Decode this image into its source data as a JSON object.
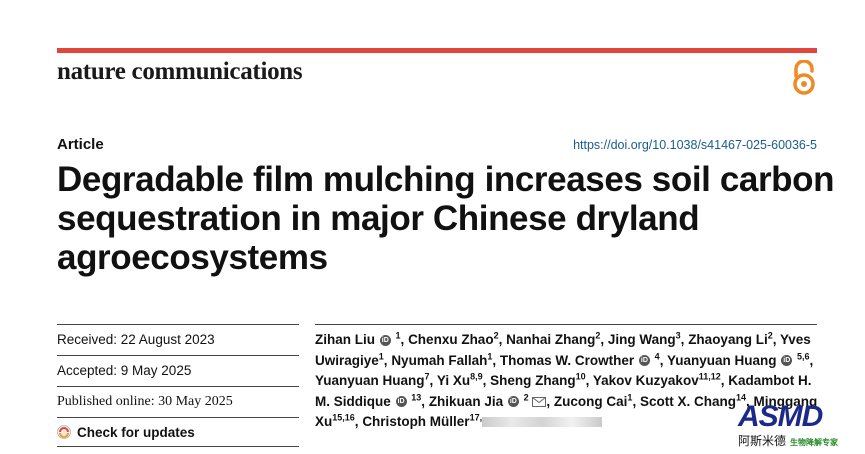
{
  "header": {
    "journal_name": "nature communications",
    "open_access_icon": "open-access-lock-icon"
  },
  "article": {
    "type": "Article",
    "doi": "https://doi.org/10.1038/s41467-025-60036-5",
    "title": "Degradable film mulching increases soil carbon sequestration in major Chinese dryland agroecosystems"
  },
  "dates": {
    "received": "Received: 22 August 2023",
    "accepted": "Accepted: 9 May 2025",
    "published": "Published online: 30 May 2025",
    "check_updates": "Check for updates"
  },
  "authors": [
    {
      "name": "Zihan Liu",
      "orcid": true,
      "sup": "1"
    },
    {
      "name": "Chenxu Zhao",
      "orcid": false,
      "sup": "2"
    },
    {
      "name": "Nanhai Zhang",
      "orcid": false,
      "sup": "2"
    },
    {
      "name": "Jing Wang",
      "orcid": false,
      "sup": "3"
    },
    {
      "name": "Zhaoyang Li",
      "orcid": false,
      "sup": "2"
    },
    {
      "name": "Yves Uwiragiye",
      "orcid": false,
      "sup": "1"
    },
    {
      "name": "Nyumah Fallah",
      "orcid": false,
      "sup": "1"
    },
    {
      "name": "Thomas W. Crowther",
      "orcid": true,
      "sup": "4"
    },
    {
      "name": "Yuanyuan Huang",
      "orcid": true,
      "sup": "5,6"
    },
    {
      "name": "Yuanyuan Huang",
      "orcid": false,
      "sup": "7"
    },
    {
      "name": "Yi Xu",
      "orcid": false,
      "sup": "8,9"
    },
    {
      "name": "Sheng Zhang",
      "orcid": false,
      "sup": "10"
    },
    {
      "name": "Yakov Kuzyakov",
      "orcid": false,
      "sup": "11,12"
    },
    {
      "name": "Kadambot H. M. Siddique",
      "orcid": true,
      "sup": "13"
    },
    {
      "name": "Zhikuan Jia",
      "orcid": true,
      "sup": "2",
      "mail": true
    },
    {
      "name": "Zucong Cai",
      "orcid": false,
      "sup": "1"
    },
    {
      "name": "Scott X. Chang",
      "orcid": false,
      "sup": "14"
    },
    {
      "name": "Minggang Xu",
      "orcid": false,
      "sup": "15,16"
    },
    {
      "name": "Christoph Müller",
      "orcid": false,
      "sup": "17,"
    }
  ],
  "watermark": {
    "logo": "ASMD",
    "chinese": "阿斯米德",
    "subtitle": "生物降解专家"
  },
  "colors": {
    "accent_bar": "#e2463b",
    "doi_link": "#1a5c8c",
    "open_access": "#f08a24"
  }
}
